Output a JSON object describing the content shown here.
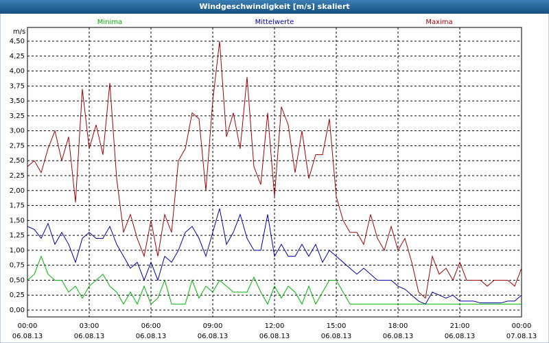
{
  "chart_data": {
    "type": "line",
    "title": "Windgeschwindigkeit [m/s] skaliert",
    "y_label": "m/s",
    "x": [
      0,
      20,
      40,
      60,
      80,
      100,
      120,
      140,
      160,
      180,
      200,
      220,
      240,
      260,
      280,
      300,
      320,
      340,
      360,
      380,
      400,
      420,
      440,
      460,
      480,
      500,
      520,
      540,
      560,
      580,
      600,
      620,
      640,
      660,
      680,
      700,
      720,
      740,
      760,
      780,
      800,
      820,
      840,
      860,
      880,
      900,
      920,
      940,
      960,
      980,
      1000,
      1020,
      1040,
      1060,
      1080,
      1100,
      1120,
      1140,
      1160,
      1180,
      1200,
      1220,
      1240,
      1260,
      1280,
      1300,
      1320,
      1340,
      1360,
      1380,
      1400,
      1420,
      1440
    ],
    "series": [
      {
        "name": "Minima",
        "color": "#00b000",
        "values": [
          0.5,
          0.6,
          0.9,
          0.6,
          0.5,
          0.5,
          0.3,
          0.4,
          0.2,
          0.4,
          0.5,
          0.6,
          0.4,
          0.3,
          0.1,
          0.3,
          0.1,
          0.4,
          0.1,
          0.2,
          0.5,
          0.1,
          0.1,
          0.1,
          0.5,
          0.2,
          0.4,
          0.3,
          0.5,
          0.4,
          0.3,
          0.3,
          0.3,
          0.55,
          0.3,
          0.1,
          0.4,
          0.2,
          0.4,
          0.3,
          0.1,
          0.4,
          0.1,
          0.3,
          0.5,
          0.5,
          0.3,
          0.1,
          0.1,
          0.1,
          0.1,
          0.1,
          0.1,
          0.1,
          0.1,
          0.1,
          0.1,
          0.1,
          0.1,
          0.1,
          0.1,
          0.1,
          0.1,
          0.1,
          0.1,
          0.1,
          0.1,
          0.1,
          0.1,
          0.1,
          0.1,
          0.1,
          0.1
        ]
      },
      {
        "name": "Mittelwerte",
        "color": "#0000a0",
        "values": [
          1.4,
          1.35,
          1.2,
          1.45,
          1.1,
          1.3,
          1.1,
          0.8,
          1.2,
          1.3,
          1.2,
          1.2,
          1.4,
          1.1,
          0.9,
          0.7,
          0.8,
          0.5,
          0.8,
          0.5,
          0.9,
          0.8,
          1.0,
          1.3,
          1.4,
          1.2,
          0.9,
          1.3,
          1.7,
          1.1,
          1.3,
          1.6,
          1.2,
          1.0,
          1.0,
          1.6,
          0.9,
          1.1,
          0.9,
          0.9,
          1.1,
          0.9,
          1.1,
          0.8,
          1.0,
          0.9,
          0.8,
          0.7,
          0.6,
          0.7,
          0.6,
          0.5,
          0.5,
          0.5,
          0.4,
          0.35,
          0.25,
          0.15,
          0.1,
          0.3,
          0.25,
          0.2,
          0.25,
          0.15,
          0.15,
          0.15,
          0.12,
          0.12,
          0.12,
          0.12,
          0.15,
          0.15,
          0.25
        ]
      },
      {
        "name": "Maxima",
        "color": "#a00000",
        "values": [
          2.4,
          2.5,
          2.3,
          2.7,
          3.0,
          2.5,
          2.9,
          1.8,
          3.7,
          2.7,
          3.1,
          2.6,
          3.8,
          2.2,
          1.3,
          1.6,
          1.2,
          0.9,
          1.5,
          0.9,
          1.6,
          1.3,
          2.5,
          2.7,
          3.3,
          3.2,
          2.0,
          3.5,
          4.5,
          2.9,
          3.3,
          2.7,
          3.9,
          2.4,
          2.1,
          3.3,
          1.9,
          3.4,
          3.1,
          2.3,
          3.0,
          2.2,
          2.6,
          2.6,
          3.2,
          1.9,
          1.5,
          1.3,
          1.3,
          1.1,
          1.6,
          1.2,
          1.0,
          1.4,
          1.0,
          1.2,
          0.8,
          0.3,
          0.2,
          0.9,
          0.6,
          0.7,
          0.5,
          0.8,
          0.5,
          0.5,
          0.5,
          0.4,
          0.5,
          0.5,
          0.5,
          0.4,
          0.7
        ]
      }
    ],
    "xlim": [
      0,
      1440
    ],
    "xticks": [
      {
        "value": 0,
        "label": "00:00",
        "date": "06.08.13"
      },
      {
        "value": 180,
        "label": "03:00",
        "date": "06.08.13"
      },
      {
        "value": 360,
        "label": "06:00",
        "date": "06.08.13"
      },
      {
        "value": 540,
        "label": "09:00",
        "date": "06.08.13"
      },
      {
        "value": 720,
        "label": "12:00",
        "date": "06.08.13"
      },
      {
        "value": 900,
        "label": "15:00",
        "date": "06.08.13"
      },
      {
        "value": 1080,
        "label": "18:00",
        "date": "06.08.13"
      },
      {
        "value": 1260,
        "label": "21:00",
        "date": "06.08.13"
      },
      {
        "value": 1440,
        "label": "00:00",
        "date": "07.08.13"
      }
    ],
    "ylim": [
      0,
      4.5
    ],
    "yticks": [
      {
        "value": 0,
        "label": "0,00"
      },
      {
        "value": 0.25,
        "label": "0,25"
      },
      {
        "value": 0.5,
        "label": "0,50"
      },
      {
        "value": 0.75,
        "label": "0,75"
      },
      {
        "value": 1,
        "label": "1,00"
      },
      {
        "value": 1.25,
        "label": "1,25"
      },
      {
        "value": 1.5,
        "label": "1,50"
      },
      {
        "value": 1.75,
        "label": "1,75"
      },
      {
        "value": 2,
        "label": "2,00"
      },
      {
        "value": 2.25,
        "label": "2,25"
      },
      {
        "value": 2.5,
        "label": "2,50"
      },
      {
        "value": 2.75,
        "label": "2,75"
      },
      {
        "value": 3,
        "label": "3,00"
      },
      {
        "value": 3.25,
        "label": "3,25"
      },
      {
        "value": 3.5,
        "label": "3,50"
      },
      {
        "value": 3.75,
        "label": "3,75"
      },
      {
        "value": 4,
        "label": "4,00"
      },
      {
        "value": 4.25,
        "label": "4,25"
      },
      {
        "value": 4.5,
        "label": "4,50"
      }
    ],
    "grid": true
  }
}
